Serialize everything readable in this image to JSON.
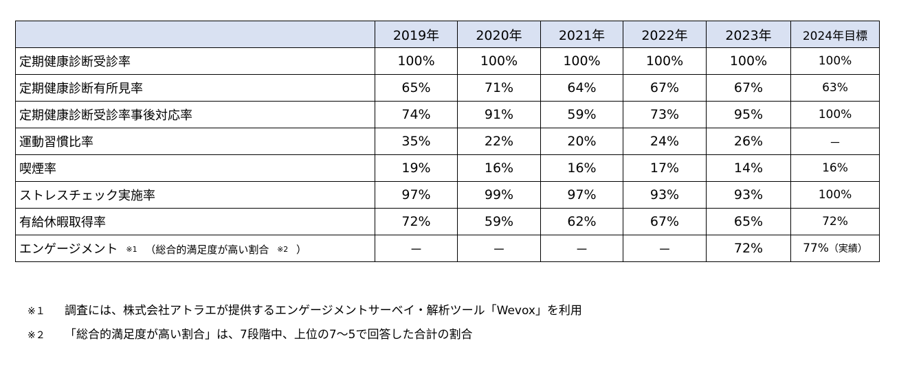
{
  "table": {
    "corner": "",
    "headers": [
      "2019年",
      "2020年",
      "2021年",
      "2022年",
      "2023年",
      "2024年目標"
    ],
    "rows": [
      {
        "label": "定期健康診断受診率",
        "values": [
          "100%",
          "100%",
          "100%",
          "100%",
          "100%",
          "100%"
        ]
      },
      {
        "label": "定期健康診断有所見率",
        "values": [
          "65%",
          "71%",
          "64%",
          "67%",
          "67%",
          "63%"
        ]
      },
      {
        "label": "定期健康診断受診率事後対応率",
        "values": [
          "74%",
          "91%",
          "59%",
          "73%",
          "95%",
          "100%"
        ]
      },
      {
        "label": "運動習慣比率",
        "values": [
          "35%",
          "22%",
          "20%",
          "24%",
          "26%",
          "－"
        ]
      },
      {
        "label": "喫煙率",
        "values": [
          "19%",
          "16%",
          "16%",
          "17%",
          "14%",
          "16%"
        ]
      },
      {
        "label": "ストレスチェック実施率",
        "values": [
          "97%",
          "99%",
          "97%",
          "93%",
          "93%",
          "100%"
        ]
      },
      {
        "label": "有給休暇取得率",
        "values": [
          "72%",
          "59%",
          "62%",
          "67%",
          "65%",
          "72%"
        ]
      }
    ],
    "engagement": {
      "label": "エンゲージメント",
      "note1": "※1",
      "paren_text": "（総合的満足度が高い割合",
      "note2": "※2",
      "paren_close": "）",
      "values": [
        "－",
        "－",
        "－",
        "－",
        "72%"
      ],
      "target_value": "77%",
      "target_note": "（実績）"
    }
  },
  "footnotes": [
    {
      "mark": "※１",
      "text": "調査には、株式会社アトラエが提供するエンゲージメントサーベイ・解析ツール「Wevox」を利用"
    },
    {
      "mark": "※２",
      "text": "「総合的満足度が高い割合」は、7段階中、上位の7～5で回答した合計の割合"
    }
  ]
}
